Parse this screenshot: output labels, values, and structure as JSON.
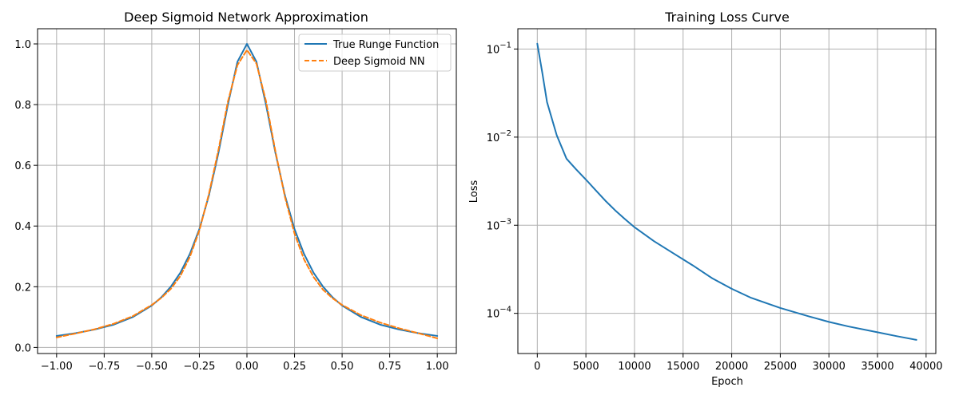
{
  "chart_data": [
    {
      "type": "line",
      "title": "Deep Sigmoid Network Approximation",
      "xlabel": "",
      "ylabel": "",
      "xlim": [
        -1.1,
        1.1
      ],
      "ylim": [
        -0.02,
        1.05
      ],
      "xticks": [
        -1.0,
        -0.75,
        -0.5,
        -0.25,
        0.0,
        0.25,
        0.5,
        0.75,
        1.0
      ],
      "xtick_labels": [
        "−1.00",
        "−0.75",
        "−0.50",
        "−0.25",
        "0.00",
        "0.25",
        "0.50",
        "0.75",
        "1.00"
      ],
      "yticks": [
        0.0,
        0.2,
        0.4,
        0.6,
        0.8,
        1.0
      ],
      "ytick_labels": [
        "0.0",
        "0.2",
        "0.4",
        "0.6",
        "0.8",
        "1.0"
      ],
      "grid": true,
      "legend_position": "top-right",
      "series": [
        {
          "name": "True Runge Function",
          "color": "#1f77b4",
          "style": "solid",
          "x": [
            -1.0,
            -0.9,
            -0.8,
            -0.7,
            -0.6,
            -0.5,
            -0.45,
            -0.4,
            -0.35,
            -0.3,
            -0.25,
            -0.2,
            -0.15,
            -0.1,
            -0.05,
            0.0,
            0.05,
            0.1,
            0.15,
            0.2,
            0.25,
            0.3,
            0.35,
            0.4,
            0.45,
            0.5,
            0.6,
            0.7,
            0.8,
            0.9,
            1.0
          ],
          "y": [
            0.038,
            0.047,
            0.059,
            0.075,
            0.1,
            0.138,
            0.165,
            0.2,
            0.246,
            0.308,
            0.39,
            0.5,
            0.64,
            0.8,
            0.941,
            1.0,
            0.941,
            0.8,
            0.64,
            0.5,
            0.39,
            0.308,
            0.246,
            0.2,
            0.165,
            0.138,
            0.1,
            0.075,
            0.059,
            0.047,
            0.038
          ]
        },
        {
          "name": "Deep Sigmoid NN",
          "color": "#ff7f0e",
          "style": "dashed",
          "x": [
            -1.0,
            -0.9,
            -0.8,
            -0.7,
            -0.6,
            -0.5,
            -0.45,
            -0.4,
            -0.35,
            -0.3,
            -0.25,
            -0.2,
            -0.15,
            -0.1,
            -0.05,
            0.0,
            0.05,
            0.1,
            0.15,
            0.2,
            0.25,
            0.3,
            0.35,
            0.4,
            0.45,
            0.5,
            0.6,
            0.7,
            0.8,
            0.9,
            1.0
          ],
          "y": [
            0.033,
            0.046,
            0.06,
            0.078,
            0.103,
            0.14,
            0.163,
            0.193,
            0.235,
            0.298,
            0.385,
            0.505,
            0.65,
            0.81,
            0.93,
            0.98,
            0.935,
            0.812,
            0.645,
            0.495,
            0.375,
            0.29,
            0.232,
            0.19,
            0.162,
            0.14,
            0.106,
            0.082,
            0.063,
            0.047,
            0.03
          ]
        }
      ]
    },
    {
      "type": "line",
      "title": "Training Loss Curve",
      "xlabel": "Epoch",
      "ylabel": "Loss",
      "yscale": "log",
      "xlim": [
        -2000,
        41000
      ],
      "ylim": [
        3.5e-05,
        0.17
      ],
      "xticks": [
        0,
        5000,
        10000,
        15000,
        20000,
        25000,
        30000,
        35000,
        40000
      ],
      "xtick_labels": [
        "0",
        "5000",
        "10000",
        "15000",
        "20000",
        "25000",
        "30000",
        "35000",
        "40000"
      ],
      "yticks": [
        0.1,
        0.01,
        0.001,
        0.0001
      ],
      "ytick_labels": [
        [
          "10",
          "−1"
        ],
        [
          "10",
          "−2"
        ],
        [
          "10",
          "−3"
        ],
        [
          "10",
          "−4"
        ]
      ],
      "grid": true,
      "series": [
        {
          "color": "#1f77b4",
          "style": "solid",
          "x": [
            0,
            500,
            1000,
            2000,
            3000,
            4000,
            5000,
            6000,
            7000,
            8000,
            9000,
            10000,
            12000,
            14000,
            16000,
            18000,
            20000,
            22000,
            25000,
            28000,
            30000,
            32000,
            35000,
            37000,
            39000
          ],
          "y": [
            0.115,
            0.055,
            0.025,
            0.0105,
            0.0057,
            0.0043,
            0.0033,
            0.0025,
            0.0019,
            0.00148,
            0.00118,
            0.00095,
            0.00066,
            0.00048,
            0.00035,
            0.00025,
            0.00019,
            0.00015,
            0.000115,
            9.2e-05,
            8e-05,
            7.1e-05,
            6.1e-05,
            5.5e-05,
            5e-05
          ]
        }
      ]
    }
  ]
}
